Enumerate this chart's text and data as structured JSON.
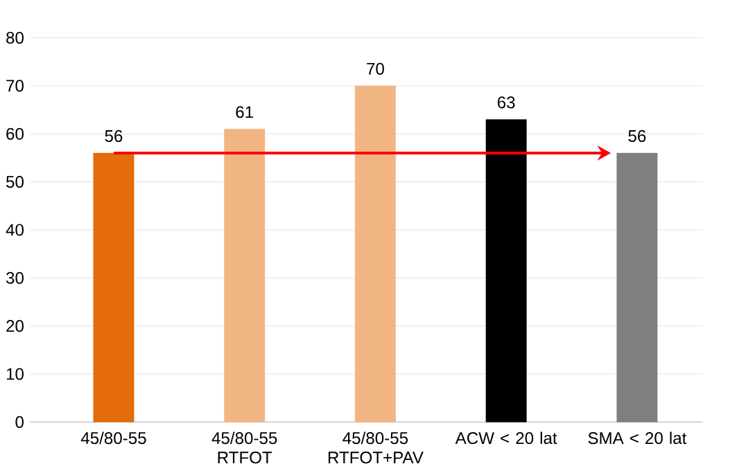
{
  "chart_data": {
    "type": "bar",
    "categories": [
      "45/80-55",
      "45/80-55 RTFOT",
      "45/80-55 RTFOT+PAV",
      "ACW < 20 lat",
      "SMA < 20 lat"
    ],
    "values": [
      56,
      61,
      70,
      63,
      56
    ],
    "colors": [
      "#e46c0a",
      "#f1b584",
      "#f1b584",
      "#000000",
      "#7f7f7f"
    ],
    "ylim": [
      0,
      80
    ],
    "yticks": [
      0,
      10,
      20,
      30,
      40,
      50,
      60,
      70,
      80
    ],
    "grid": "y",
    "data_labels": true
  }
}
